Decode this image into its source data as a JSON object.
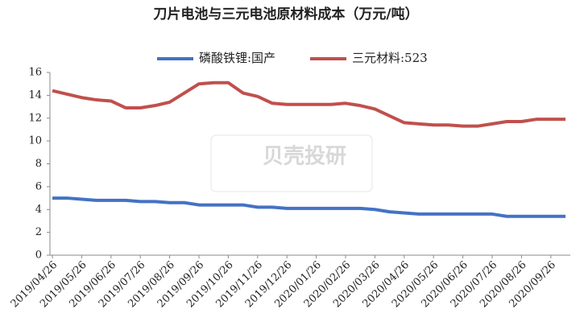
{
  "chart_data": {
    "type": "line",
    "title": "刀片电池与三元电池原材料成本（万元/吨）",
    "watermark": "贝壳投研",
    "categories": [
      "2019/04/26",
      null,
      "2019/05/26",
      null,
      "2019/06/26",
      null,
      "2019/07/26",
      null,
      "2019/08/26",
      null,
      "2019/09/26",
      null,
      "2019/10/26",
      null,
      "2019/11/26",
      null,
      "2019/12/26",
      null,
      "2020/01/26",
      null,
      "2020/02/26",
      null,
      "2020/03/26",
      null,
      "2020/04/26",
      null,
      "2020/05/26",
      null,
      "2020/06/26",
      null,
      "2020/07/26",
      null,
      "2020/08/26",
      null,
      "2020/09/26",
      null
    ],
    "series": [
      {
        "name": "磷酸铁锂:国产",
        "color": "#4472c4",
        "values": [
          5.0,
          5.0,
          4.9,
          4.8,
          4.8,
          4.8,
          4.7,
          4.7,
          4.6,
          4.6,
          4.4,
          4.4,
          4.4,
          4.4,
          4.2,
          4.2,
          4.1,
          4.1,
          4.1,
          4.1,
          4.1,
          4.1,
          4.0,
          3.8,
          3.7,
          3.6,
          3.6,
          3.6,
          3.6,
          3.6,
          3.6,
          3.4,
          3.4,
          3.4,
          3.4,
          3.4
        ]
      },
      {
        "name": "三元材料:523",
        "color": "#c0504d",
        "values": [
          14.4,
          14.1,
          13.8,
          13.6,
          13.5,
          12.9,
          12.9,
          13.1,
          13.4,
          14.2,
          15.0,
          15.1,
          15.1,
          14.2,
          13.9,
          13.3,
          13.2,
          13.2,
          13.2,
          13.2,
          13.3,
          13.1,
          12.8,
          12.2,
          11.6,
          11.5,
          11.4,
          11.4,
          11.3,
          11.3,
          11.5,
          11.7,
          11.7,
          11.9,
          11.9,
          11.9
        ]
      }
    ],
    "ylim": [
      0,
      16
    ],
    "yticks": [
      0,
      2,
      4,
      6,
      8,
      10,
      12,
      14,
      16
    ],
    "grid": false
  }
}
